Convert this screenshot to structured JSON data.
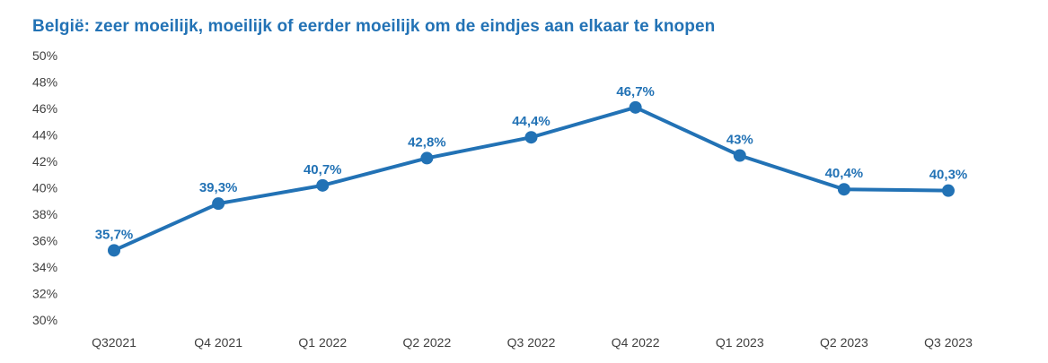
{
  "colors": {
    "accent_blue": "#2272b5",
    "tick_text": "#404040",
    "background": "#ffffff"
  },
  "chart_data": {
    "type": "line",
    "title": "België: zeer moeilijk, moeilijk of eerder moeilijk om de eindjes aan elkaar te knopen",
    "categories": [
      "Q32021",
      "Q4 2021",
      "Q1 2022",
      "Q2 2022",
      "Q3 2022",
      "Q4 2022",
      "Q1 2023",
      "Q2 2023",
      "Q3 2023"
    ],
    "values": [
      35.7,
      39.3,
      40.7,
      42.8,
      44.4,
      46.7,
      43,
      40.4,
      40.3
    ],
    "data_labels": [
      "35,7%",
      "39,3%",
      "40,7%",
      "42,8%",
      "44,4%",
      "46,7%",
      "43%",
      "40,4%",
      "40,3%"
    ],
    "series_name": "België",
    "xlabel": "",
    "ylabel": "",
    "ylim": [
      30,
      50
    ],
    "ytick_step": 2,
    "ytick_labels_top_to_bottom": [
      "50%",
      "48%",
      "46%",
      "44%",
      "42%",
      "40%",
      "38%",
      "36%",
      "34%",
      "32%",
      "30%"
    ],
    "grid": false,
    "legend": false,
    "line_color": "#2272b5",
    "marker": "circle",
    "decimal_separator": ","
  }
}
